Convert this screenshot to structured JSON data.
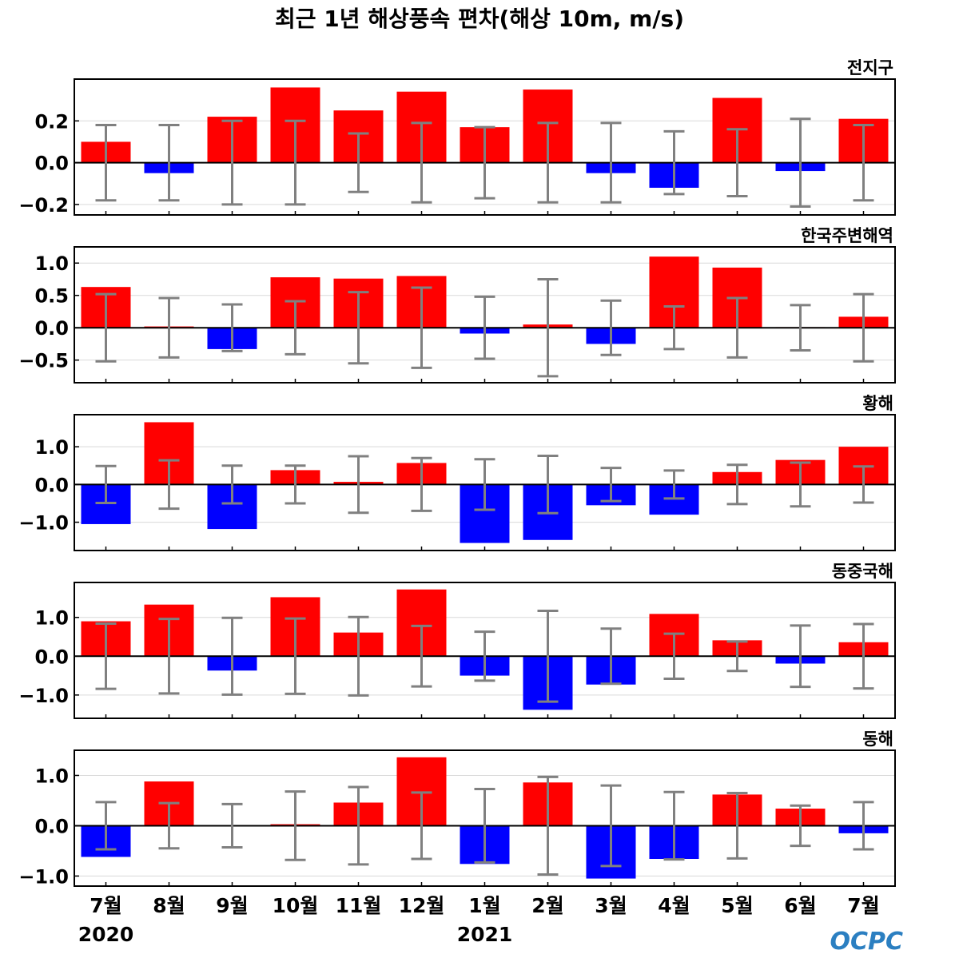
{
  "title": "최근 1년 해상풍속 편차(해상 10m, m/s)",
  "logo_text": "OCPC",
  "colors": {
    "positive": "#ff0000",
    "negative": "#0000ff",
    "error_bar": "#808080",
    "grid": "#d9d9d9",
    "zero_line": "#000000",
    "logo": "#2b7fc1"
  },
  "x_axis": {
    "months": [
      "7월",
      "8월",
      "9월",
      "10월",
      "11월",
      "12월",
      "1월",
      "2월",
      "3월",
      "4월",
      "5월",
      "6월",
      "7월"
    ],
    "year_labels": [
      {
        "label": "2020",
        "index": 0
      },
      {
        "label": "2021",
        "index": 6
      }
    ]
  },
  "chart_data": [
    {
      "type": "bar",
      "panel_label": "전지구",
      "categories": [
        "7월",
        "8월",
        "9월",
        "10월",
        "11월",
        "12월",
        "1월",
        "2월",
        "3월",
        "4월",
        "5월",
        "6월",
        "7월"
      ],
      "values": [
        0.1,
        -0.05,
        0.22,
        0.36,
        0.25,
        0.34,
        0.17,
        0.35,
        -0.05,
        -0.12,
        0.31,
        -0.04,
        0.21
      ],
      "error": [
        0.18,
        0.18,
        0.2,
        0.2,
        0.14,
        0.19,
        0.17,
        0.19,
        0.19,
        0.15,
        0.16,
        0.21,
        0.18
      ],
      "ylim": [
        -0.25,
        0.4
      ],
      "yticks": [
        -0.2,
        0.0,
        0.2
      ],
      "ytick_labels": [
        "−0.2",
        "0.0",
        "0.2"
      ],
      "grid": true
    },
    {
      "type": "bar",
      "panel_label": "한국주변해역",
      "categories": [
        "7월",
        "8월",
        "9월",
        "10월",
        "11월",
        "12월",
        "1월",
        "2월",
        "3월",
        "4월",
        "5월",
        "6월",
        "7월"
      ],
      "values": [
        0.63,
        0.02,
        -0.33,
        0.78,
        0.76,
        0.8,
        -0.09,
        0.05,
        -0.25,
        1.1,
        0.93,
        0.0,
        0.17
      ],
      "error": [
        0.52,
        0.46,
        0.36,
        0.41,
        0.55,
        0.62,
        0.48,
        0.75,
        0.42,
        0.33,
        0.46,
        0.35,
        0.52
      ],
      "ylim": [
        -0.85,
        1.25
      ],
      "yticks": [
        -0.5,
        0.0,
        0.5,
        1.0
      ],
      "ytick_labels": [
        "−0.5",
        "0.0",
        "0.5",
        "1.0"
      ],
      "grid": true
    },
    {
      "type": "bar",
      "panel_label": "황해",
      "categories": [
        "7월",
        "8월",
        "9월",
        "10월",
        "11월",
        "12월",
        "1월",
        "2월",
        "3월",
        "4월",
        "5월",
        "6월",
        "7월"
      ],
      "values": [
        -1.05,
        1.65,
        -1.18,
        0.38,
        0.07,
        0.57,
        -1.55,
        -1.47,
        -0.55,
        -0.8,
        0.33,
        0.65,
        1.0
      ],
      "error": [
        0.49,
        0.64,
        0.5,
        0.5,
        0.75,
        0.7,
        0.67,
        0.76,
        0.44,
        0.37,
        0.52,
        0.58,
        0.48
      ],
      "ylim": [
        -1.75,
        1.85
      ],
      "yticks": [
        -1.0,
        0.0,
        1.0
      ],
      "ytick_labels": [
        "−1.0",
        "0.0",
        "1.0"
      ],
      "grid": true
    },
    {
      "type": "bar",
      "panel_label": "동중국해",
      "categories": [
        "7월",
        "8월",
        "9월",
        "10월",
        "11월",
        "12월",
        "1월",
        "2월",
        "3월",
        "4월",
        "5월",
        "6월",
        "7월"
      ],
      "values": [
        0.9,
        1.33,
        -0.37,
        1.52,
        0.61,
        1.72,
        -0.5,
        -1.38,
        -0.73,
        1.09,
        0.41,
        -0.19,
        0.36
      ],
      "error": [
        0.84,
        0.96,
        0.99,
        0.97,
        1.01,
        0.78,
        0.63,
        1.17,
        0.71,
        0.58,
        0.38,
        0.79,
        0.83
      ],
      "ylim": [
        -1.6,
        1.9
      ],
      "yticks": [
        -1.0,
        0.0,
        1.0
      ],
      "ytick_labels": [
        "−1.0",
        "0.0",
        "1.0"
      ],
      "grid": true
    },
    {
      "type": "bar",
      "panel_label": "동해",
      "categories": [
        "7월",
        "8월",
        "9월",
        "10월",
        "11월",
        "12월",
        "1월",
        "2월",
        "3월",
        "4월",
        "5월",
        "6월",
        "7월"
      ],
      "values": [
        -0.62,
        0.88,
        0.0,
        0.03,
        0.46,
        1.36,
        -0.76,
        0.86,
        -1.05,
        -0.66,
        0.62,
        0.34,
        -0.15
      ],
      "error": [
        0.47,
        0.45,
        0.43,
        0.68,
        0.77,
        0.66,
        0.73,
        0.97,
        0.8,
        0.67,
        0.65,
        0.4,
        0.47
      ],
      "ylim": [
        -1.2,
        1.5
      ],
      "yticks": [
        -1.0,
        0.0,
        1.0
      ],
      "ytick_labels": [
        "−1.0",
        "0.0",
        "1.0"
      ],
      "grid": true
    }
  ]
}
